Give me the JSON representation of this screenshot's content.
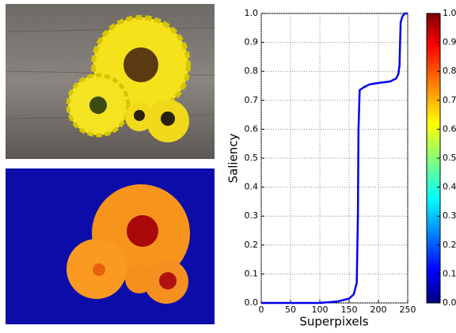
{
  "chart_data": {
    "type": "line",
    "xlabel": "Superpixels",
    "ylabel": "Saliency",
    "x": [
      0,
      50,
      100,
      130,
      150,
      158,
      163,
      165,
      166,
      168,
      175,
      185,
      200,
      220,
      230,
      234,
      236,
      237,
      238,
      241,
      245,
      250
    ],
    "values": [
      0,
      0,
      0,
      0.005,
      0.015,
      0.03,
      0.07,
      0.3,
      0.6,
      0.735,
      0.745,
      0.755,
      0.76,
      0.765,
      0.775,
      0.79,
      0.82,
      0.9,
      0.97,
      0.99,
      1.0,
      1.0
    ],
    "color": "#0000ee",
    "xlim": [
      0,
      250
    ],
    "ylim": [
      0,
      1
    ],
    "xticks": [
      0,
      50,
      100,
      150,
      200,
      250
    ],
    "yticks": [
      {
        "value": 0,
        "label": "0.0"
      },
      {
        "value": 0.1,
        "label": "0.1"
      },
      {
        "value": 0.2,
        "label": "0.2"
      },
      {
        "value": 0.3,
        "label": "0.3"
      },
      {
        "value": 0.4,
        "label": "0.4"
      },
      {
        "value": 0.5,
        "label": "0.5"
      },
      {
        "value": 0.6,
        "label": "0.6"
      },
      {
        "value": 0.7,
        "label": "0.7"
      },
      {
        "value": 0.8,
        "label": "0.8"
      },
      {
        "value": 0.9,
        "label": "0.9"
      },
      {
        "value": 1,
        "label": "1.0"
      }
    ],
    "grid": true,
    "colorbar": {
      "colormap": "jet",
      "lim": [
        0,
        1
      ],
      "ticks": [
        {
          "value": 0,
          "label": "0.0"
        },
        {
          "value": 0.1,
          "label": "0.1"
        },
        {
          "value": 0.2,
          "label": "0.2"
        },
        {
          "value": 0.3,
          "label": "0.3"
        },
        {
          "value": 0.4,
          "label": "0.4"
        },
        {
          "value": 0.5,
          "label": "0.5"
        },
        {
          "value": 0.6,
          "label": "0.6"
        },
        {
          "value": 0.7,
          "label": "0.7"
        },
        {
          "value": 0.8,
          "label": "0.8"
        },
        {
          "value": 0.9,
          "label": "0.9"
        },
        {
          "value": 1,
          "label": "1.0"
        }
      ]
    }
  }
}
